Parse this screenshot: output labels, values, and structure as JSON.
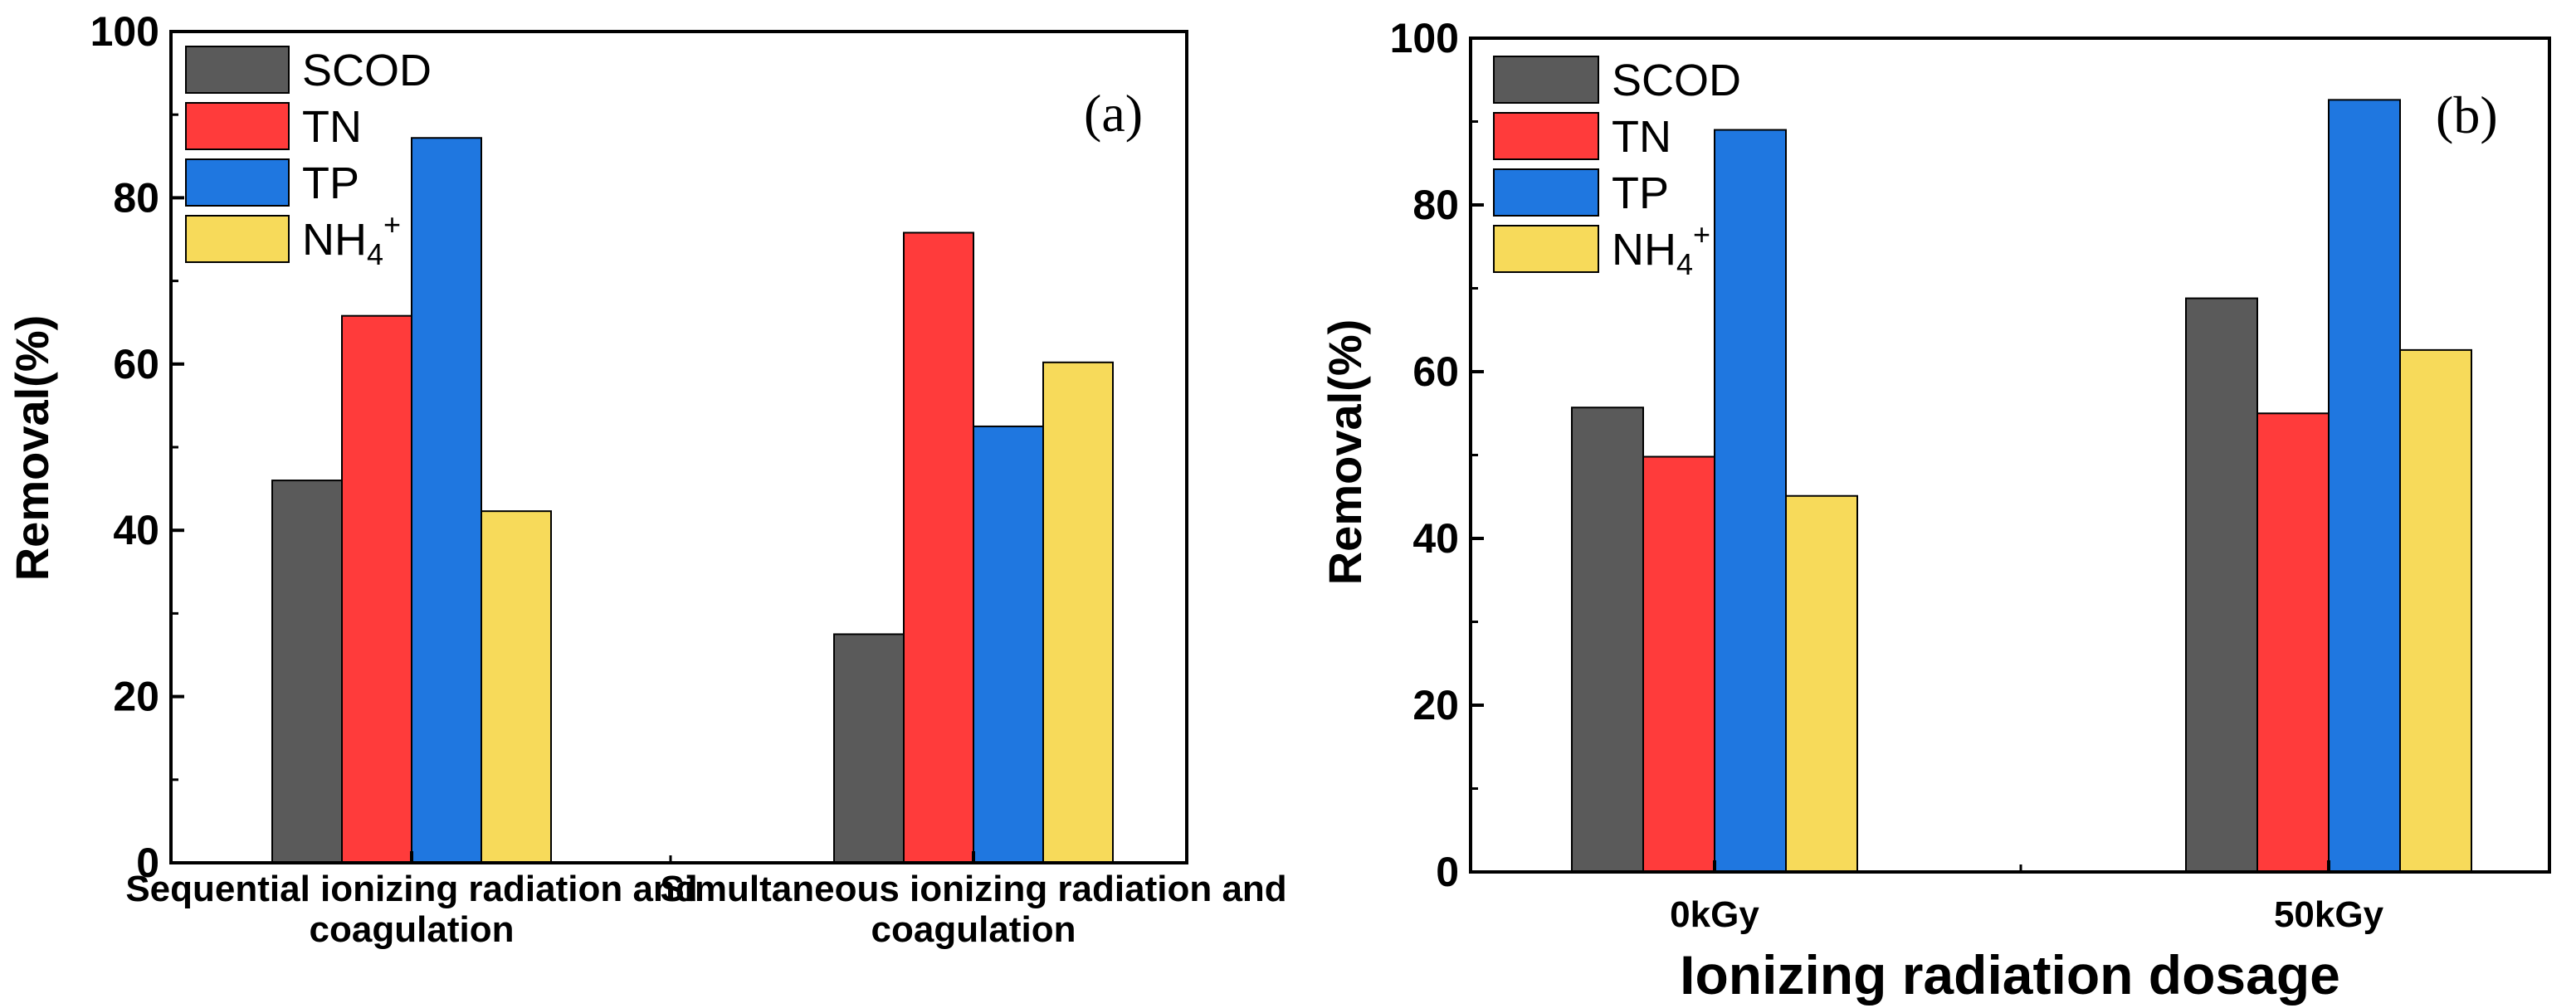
{
  "chart_data": [
    {
      "type": "bar",
      "panel_label": "(a)",
      "categories": [
        {
          "line1": "Sequential ionizing   radiation and",
          "line2": "coagulation"
        },
        {
          "line1": "Simultaneous ionizing  radiation and",
          "line2": "coagulation"
        }
      ],
      "series": [
        {
          "name": "SCOD",
          "color": "#5a5a5a",
          "values": [
            46,
            27.5
          ]
        },
        {
          "name": "TN",
          "color": "#ff3b3b",
          "values": [
            65.8,
            75.8
          ]
        },
        {
          "name": "TP",
          "color": "#1f77e0",
          "values": [
            87.2,
            52.5
          ]
        },
        {
          "name": "NH4+",
          "label_base": "NH",
          "label_sub": "4",
          "label_sup": "+",
          "color": "#f7da5a",
          "values": [
            42.3,
            60.2
          ]
        }
      ],
      "ylabel": "Removal(%)",
      "xlabel": "",
      "ylim": [
        0,
        100
      ],
      "yticks": [
        "0",
        "20",
        "40",
        "60",
        "80",
        "100"
      ]
    },
    {
      "type": "bar",
      "panel_label": "(b)",
      "categories": [
        {
          "line1": "0kGy",
          "line2": ""
        },
        {
          "line1": "50kGy",
          "line2": ""
        }
      ],
      "series": [
        {
          "name": "SCOD",
          "color": "#5a5a5a",
          "values": [
            55.7,
            68.8
          ]
        },
        {
          "name": "TN",
          "color": "#ff3b3b",
          "values": [
            49.8,
            55
          ]
        },
        {
          "name": "TP",
          "color": "#1f77e0",
          "values": [
            89,
            92.6
          ]
        },
        {
          "name": "NH4+",
          "label_base": "NH",
          "label_sub": "4",
          "label_sup": "+",
          "color": "#f7da5a",
          "values": [
            45.1,
            62.6
          ]
        }
      ],
      "ylabel": "Removal(%)",
      "xlabel": "Ionizing radiation dosage",
      "ylim": [
        0,
        100
      ],
      "yticks": [
        "0",
        "20",
        "40",
        "60",
        "80",
        "100"
      ]
    }
  ]
}
